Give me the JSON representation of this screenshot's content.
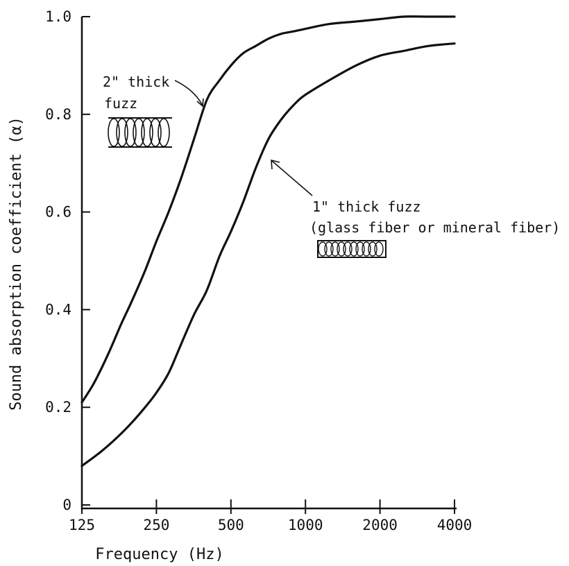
{
  "chart_data": {
    "type": "line",
    "xlabel": "Frequency (Hz)",
    "ylabel": "Sound absorption coefficient (α)",
    "x_scale": "log",
    "xlim": [
      125,
      4000
    ],
    "ylim": [
      0,
      1.0
    ],
    "x_ticks": [
      "125",
      "250",
      "500",
      "1000",
      "2000",
      "4000"
    ],
    "y_ticks": [
      "0",
      "0.2",
      "0.4",
      "0.6",
      "0.8",
      "1.0"
    ],
    "grid": false,
    "legend": "none (curves labeled by annotations)",
    "series": [
      {
        "x": [
          125,
          140,
          160,
          180,
          200,
          225,
          250,
          280,
          315,
          355,
          400,
          450,
          500,
          560,
          630,
          710,
          800,
          900,
          1000,
          1250,
          1600,
          2000,
          2500,
          3150,
          4000
        ],
        "y": [
          0.21,
          0.25,
          0.31,
          0.37,
          0.42,
          0.48,
          0.54,
          0.6,
          0.67,
          0.75,
          0.83,
          0.87,
          0.9,
          0.925,
          0.94,
          0.955,
          0.965,
          0.97,
          0.975,
          0.985,
          0.99,
          0.995,
          1.0,
          1.0,
          1.0
        ]
      },
      {
        "x": [
          125,
          150,
          175,
          200,
          225,
          250,
          280,
          315,
          355,
          400,
          450,
          500,
          560,
          630,
          710,
          800,
          900,
          1000,
          1250,
          1600,
          2000,
          2500,
          3150,
          4000
        ],
        "y": [
          0.08,
          0.11,
          0.14,
          0.17,
          0.2,
          0.23,
          0.27,
          0.33,
          0.39,
          0.44,
          0.51,
          0.56,
          0.62,
          0.69,
          0.75,
          0.79,
          0.82,
          0.84,
          0.87,
          0.9,
          0.92,
          0.93,
          0.94,
          0.945
        ]
      }
    ],
    "annotations": [
      {
        "lines": [
          "2\" thick",
          "fuzz"
        ]
      },
      {
        "lines": [
          "1\" thick fuzz",
          "(glass fiber or mineral fiber)"
        ]
      }
    ]
  }
}
